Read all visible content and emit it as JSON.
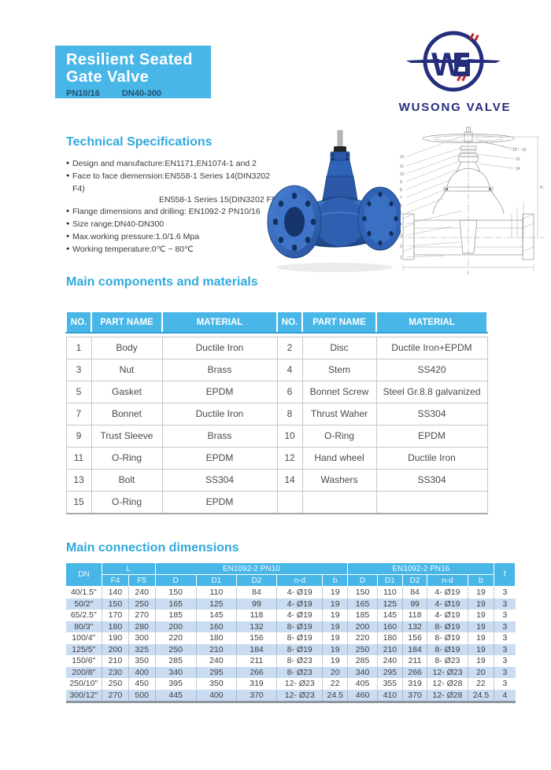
{
  "header": {
    "title_line1": "Resilient Seated",
    "title_line2": "Gate Valve",
    "pn": "PN10/16",
    "dn": "DN40-300"
  },
  "logo": {
    "name": "WUSONG VALVE",
    "monogram_w": "W",
    "monogram_s": "S"
  },
  "colors": {
    "accent_cyan": "#49b6e8",
    "heading_cyan": "#2fa9dd",
    "logo_navy": "#252e7d",
    "logo_red": "#c0272d",
    "stripe_blue": "#cadcf2",
    "valve_blue": "#2f62b5"
  },
  "tech_specs": {
    "heading": "Technical Specifications",
    "items": [
      {
        "text": "Design and manufacture:EN1171,EN1074-1 and 2"
      },
      {
        "text": "Face to face diemension:EN558-1 Series 14(DIN3202 F4)",
        "cont": "EN558-1 Series 15(DIN3202 F5)"
      },
      {
        "text": "Flange dimensions and drilling: EN1092-2 PN10/16"
      },
      {
        "text": "Size range:DN40-DN300"
      },
      {
        "text": "Max.working pressure:1.0/1.6 Mpa"
      },
      {
        "text": "Working temperature:0℃ ~ 80℃"
      }
    ]
  },
  "components": {
    "heading": "Main components and materials",
    "columns": [
      "NO.",
      "PART NAME",
      "MATERIAL",
      "NO.",
      "PART NAME",
      "MATERIAL"
    ],
    "rows": [
      [
        "1",
        "Body",
        "Ductile Iron",
        "2",
        "Disc",
        "Ductile Iron+EPDM"
      ],
      [
        "3",
        "Nut",
        "Brass",
        "4",
        "Stem",
        "SS420"
      ],
      [
        "5",
        "Gasket",
        "EPDM",
        "6",
        "Bonnet Screw",
        "Steel Gr.8.8 galvanized"
      ],
      [
        "7",
        "Bonnet",
        "Ductile Iron",
        "8",
        "Thrust Waher",
        "SS304"
      ],
      [
        "9",
        "Trust Sleeve",
        "Brass",
        "10",
        "O-Ring",
        "EPDM"
      ],
      [
        "11",
        "O-Ring",
        "EPDM",
        "12",
        "Hand wheel",
        "Ductile Iron"
      ],
      [
        "13",
        "Bolt",
        "SS304",
        "14",
        "Washers",
        "SS304"
      ],
      [
        "15",
        "O-Ring",
        "EPDM",
        "",
        "",
        ""
      ]
    ]
  },
  "dimensions": {
    "heading": "Main connection dimensions",
    "header": {
      "dn": "DN",
      "l": "L",
      "f4": "F4",
      "f5": "F5",
      "pn10": "EN1092-2 PN10",
      "pn16": "EN1092-2 PN16",
      "sub": [
        "D",
        "D1",
        "D2",
        "n-d",
        "b"
      ],
      "f": "f"
    },
    "rows": [
      [
        "40/1.5\"",
        "140",
        "240",
        "150",
        "110",
        "84",
        "4- Ø19",
        "19",
        "150",
        "110",
        "84",
        "4- Ø19",
        "19",
        "3"
      ],
      [
        "50/2\"",
        "150",
        "250",
        "165",
        "125",
        "99",
        "4- Ø19",
        "19",
        "165",
        "125",
        "99",
        "4- Ø19",
        "19",
        "3"
      ],
      [
        "65/2.5\"",
        "170",
        "270",
        "185",
        "145",
        "118",
        "4- Ø19",
        "19",
        "185",
        "145",
        "118",
        "4- Ø19",
        "19",
        "3"
      ],
      [
        "80/3\"",
        "180",
        "280",
        "200",
        "160",
        "132",
        "8- Ø19",
        "19",
        "200",
        "160",
        "132",
        "8- Ø19",
        "19",
        "3"
      ],
      [
        "100/4\"",
        "190",
        "300",
        "220",
        "180",
        "156",
        "8- Ø19",
        "19",
        "220",
        "180",
        "156",
        "8- Ø19",
        "19",
        "3"
      ],
      [
        "125/5\"",
        "200",
        "325",
        "250",
        "210",
        "184",
        "8- Ø19",
        "19",
        "250",
        "210",
        "184",
        "8- Ø19",
        "19",
        "3"
      ],
      [
        "150/6\"",
        "210",
        "350",
        "285",
        "240",
        "211",
        "8- Ø23",
        "19",
        "285",
        "240",
        "211",
        "8- Ø23",
        "19",
        "3"
      ],
      [
        "200/8\"",
        "230",
        "400",
        "340",
        "295",
        "266",
        "8- Ø23",
        "20",
        "340",
        "295",
        "266",
        "12- Ø23",
        "20",
        "3"
      ],
      [
        "250/10\"",
        "250",
        "450",
        "395",
        "350",
        "319",
        "12- Ø23",
        "22",
        "405",
        "355",
        "319",
        "12- Ø28",
        "22",
        "3"
      ],
      [
        "300/12\"",
        "270",
        "500",
        "445",
        "400",
        "370",
        "12- Ø23",
        "24.5",
        "460",
        "410",
        "370",
        "12- Ø28",
        "24.5",
        "4"
      ]
    ]
  },
  "drawing": {
    "callouts_left": [
      "12",
      "11",
      "13",
      "9",
      "8",
      "7",
      "6",
      "5",
      "4",
      "3",
      "2",
      "1"
    ],
    "callouts_right": [
      "12",
      "16",
      "10",
      "14"
    ],
    "bottom_label": "L",
    "right_label": "H"
  }
}
